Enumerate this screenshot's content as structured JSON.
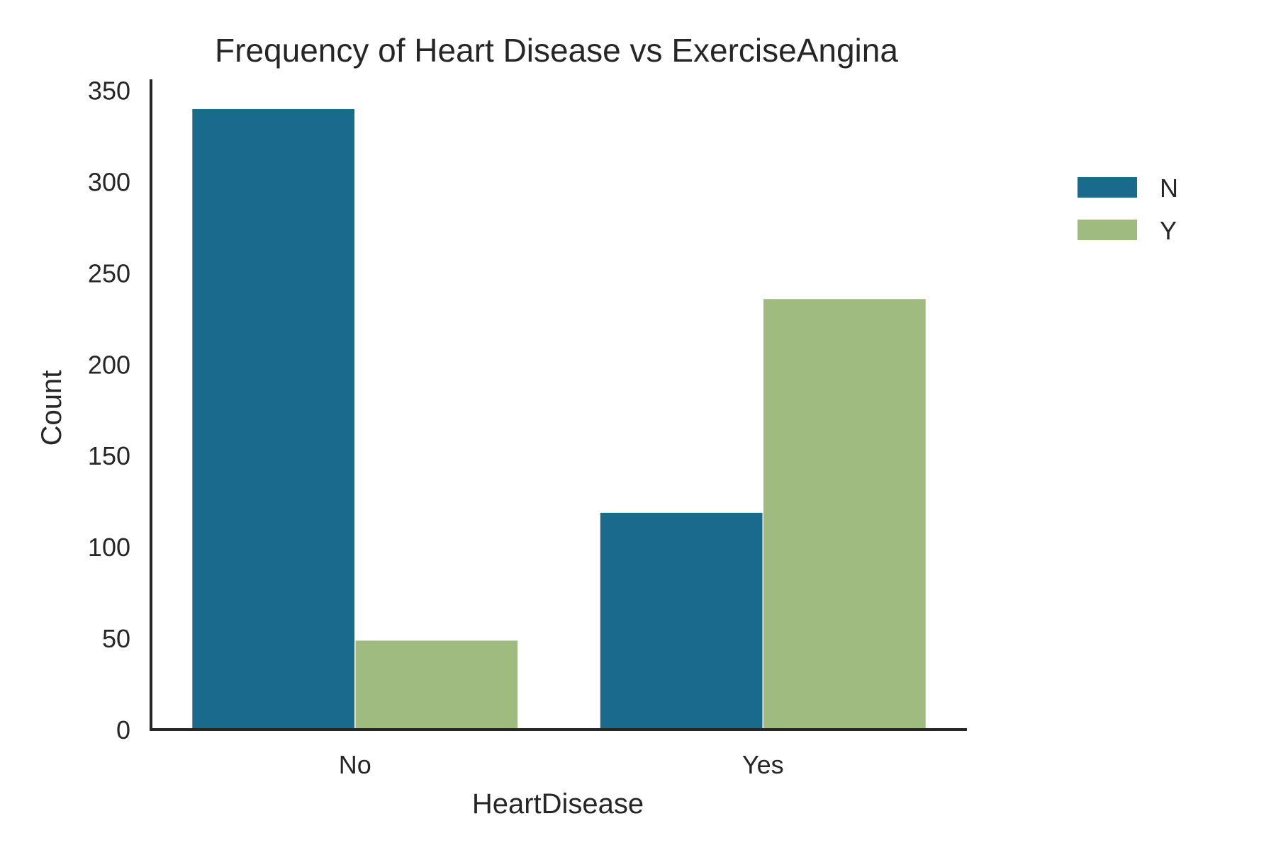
{
  "chart_data": {
    "type": "bar",
    "title": "Frequency of Heart Disease vs ExerciseAngina",
    "xlabel": "HeartDisease",
    "ylabel": "Count",
    "categories": [
      "No",
      "Yes"
    ],
    "series": [
      {
        "name": "N",
        "color": "#1a6a8e",
        "values": [
          340,
          119
        ]
      },
      {
        "name": "Y",
        "color": "#9fbb80",
        "values": [
          49,
          236
        ]
      }
    ],
    "yticks": [
      0,
      50,
      100,
      150,
      200,
      250,
      300,
      350
    ],
    "ylim": [
      0,
      356
    ],
    "grid": false,
    "legend_position": "top-right"
  }
}
